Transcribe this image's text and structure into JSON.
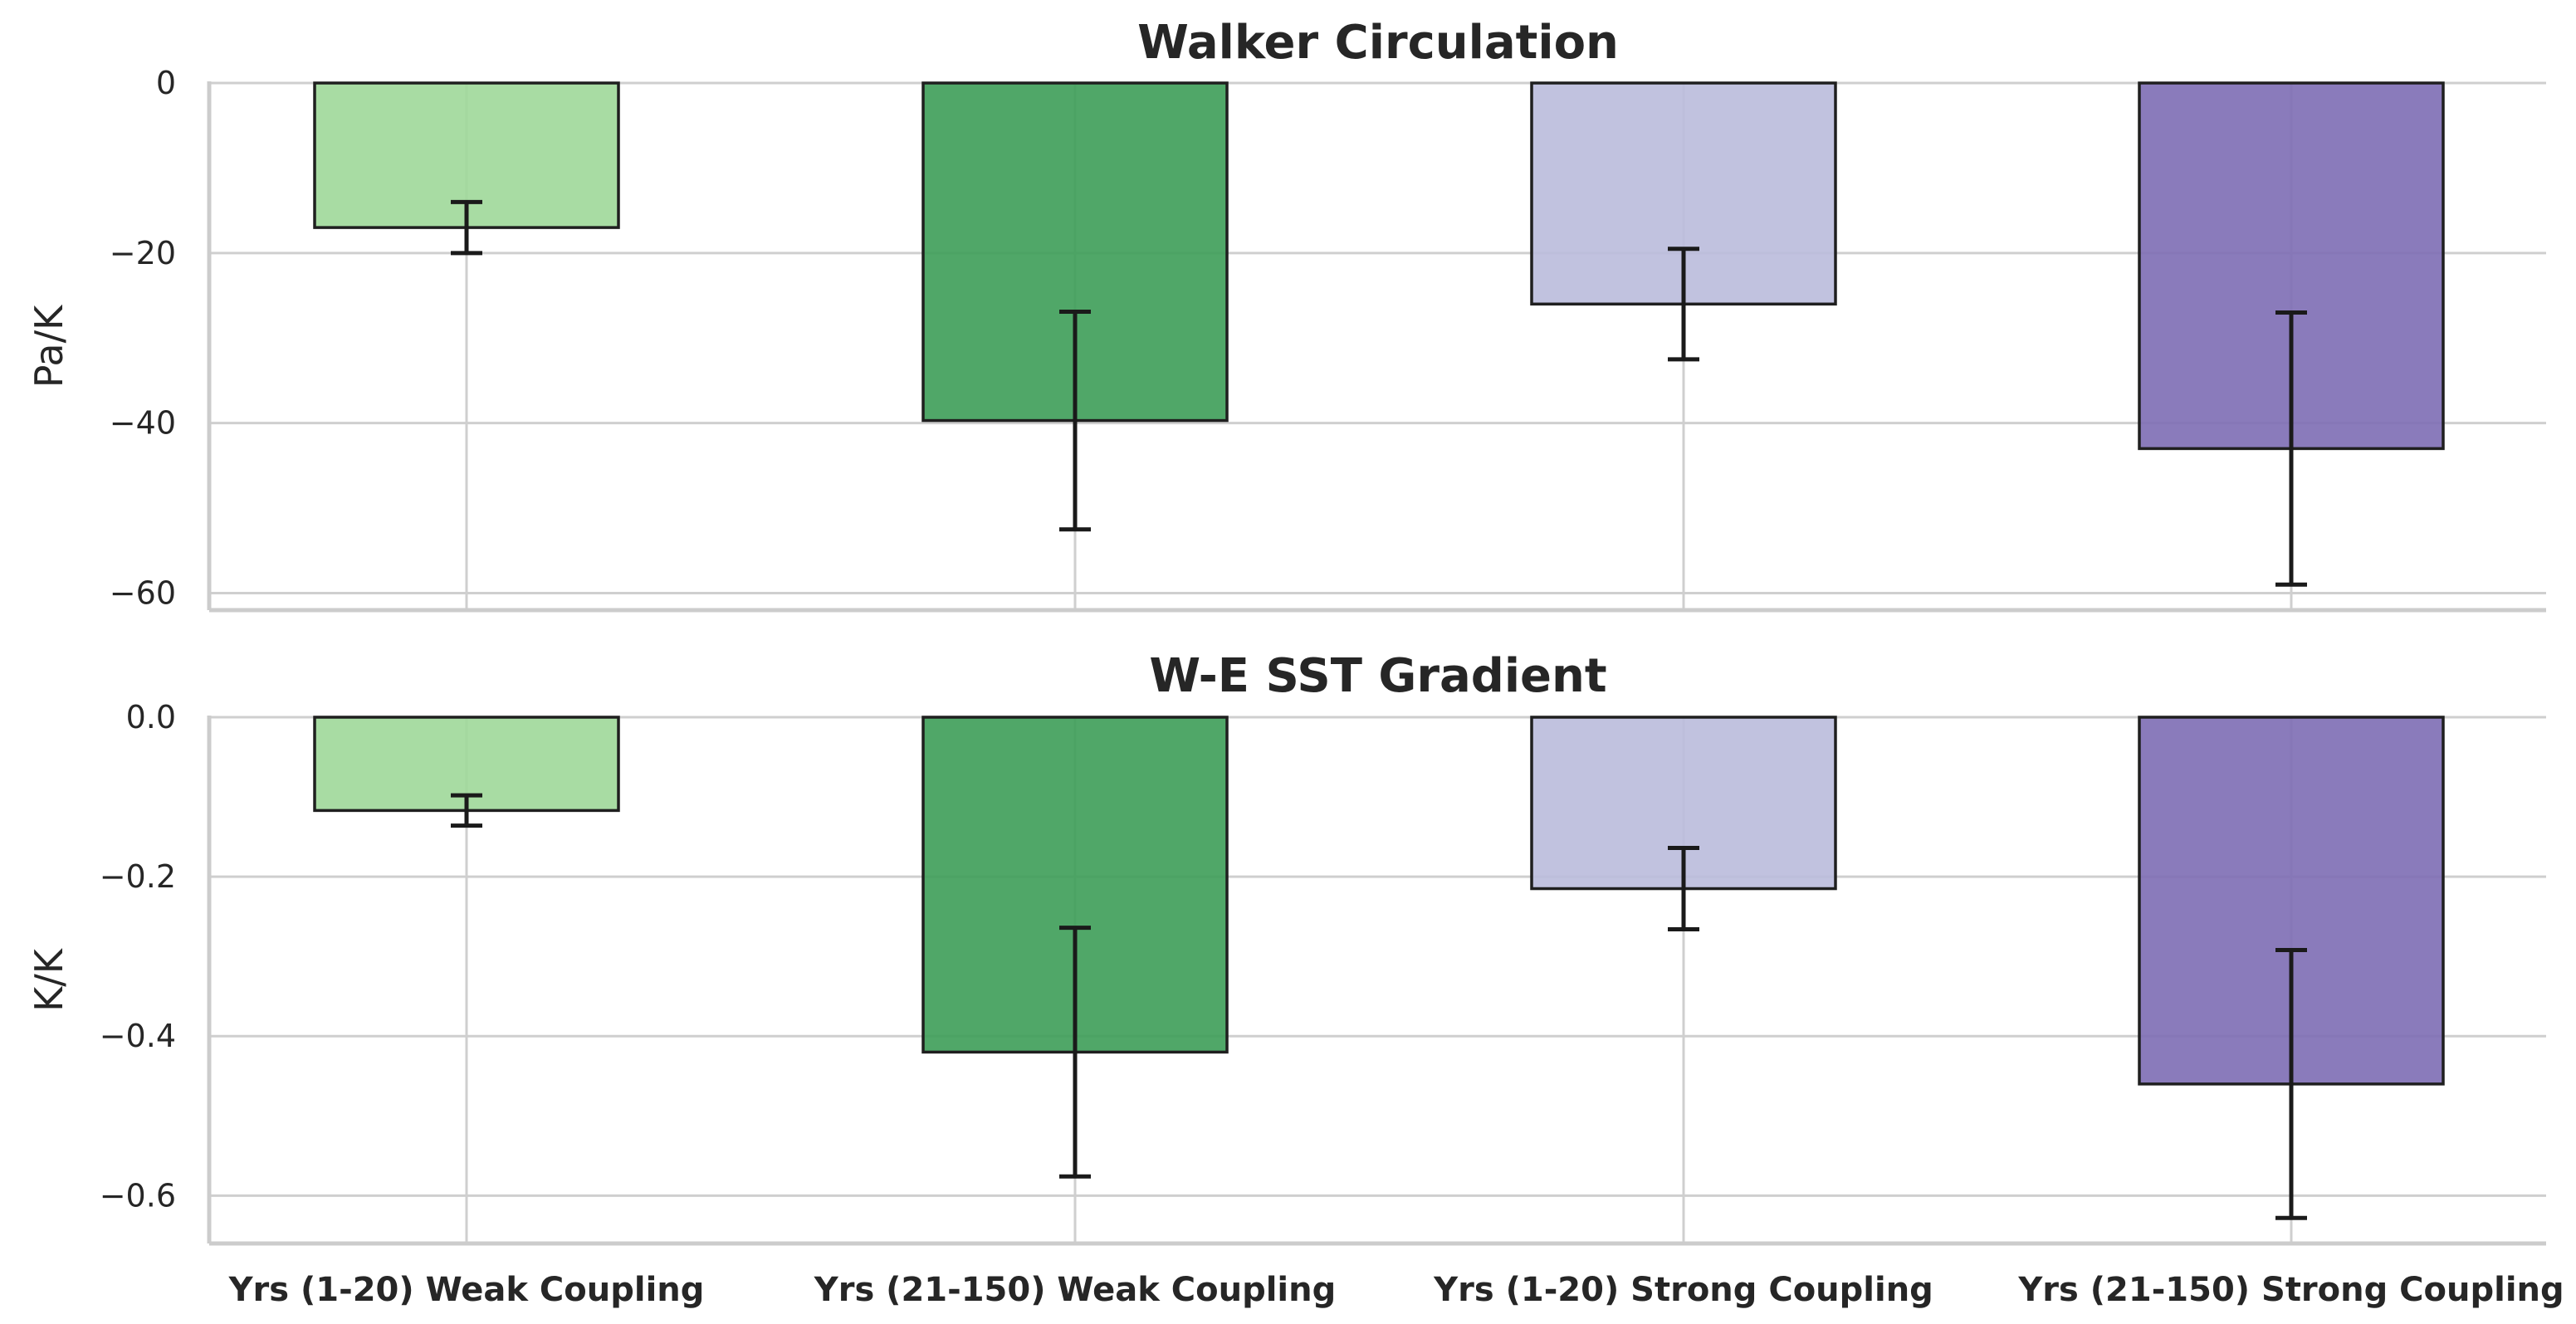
{
  "chart_data": [
    {
      "type": "bar",
      "title": "Walker Circulation",
      "ylabel": "Pa/K",
      "categories": [
        "Yrs (1-20) Weak Coupling",
        "Yrs (21-150) Weak Coupling",
        "Yrs (1-20) Strong Coupling",
        "Yrs (21-150) Strong Coupling"
      ],
      "values": [
        -17.0,
        -39.7,
        -26.0,
        -43.0
      ],
      "errors": [
        3.0,
        12.8,
        6.5,
        16.0
      ],
      "colors": [
        "#a1d99b",
        "#41a05b",
        "#bcbddc",
        "#8070b5"
      ],
      "ylim": [
        -62,
        0
      ],
      "yticks": [
        0,
        -20,
        -40,
        -60
      ],
      "ytick_labels": [
        "0",
        "−20",
        "−40",
        "−60"
      ],
      "grid": true
    },
    {
      "type": "bar",
      "title": "W-E SST Gradient",
      "ylabel": "K/K",
      "categories": [
        "Yrs (1-20) Weak Coupling",
        "Yrs (21-150) Weak Coupling",
        "Yrs (1-20) Strong Coupling",
        "Yrs (21-150) Strong Coupling"
      ],
      "values": [
        -0.117,
        -0.42,
        -0.215,
        -0.46
      ],
      "errors": [
        0.019,
        0.156,
        0.051,
        0.168
      ],
      "colors": [
        "#a1d99b",
        "#41a05b",
        "#bcbddc",
        "#8070b5"
      ],
      "ylim": [
        -0.66,
        0.0
      ],
      "yticks": [
        0.0,
        -0.2,
        -0.4,
        -0.6
      ],
      "ytick_labels": [
        "0.0",
        "−0.2",
        "−0.4",
        "−0.6"
      ],
      "grid": true
    }
  ]
}
